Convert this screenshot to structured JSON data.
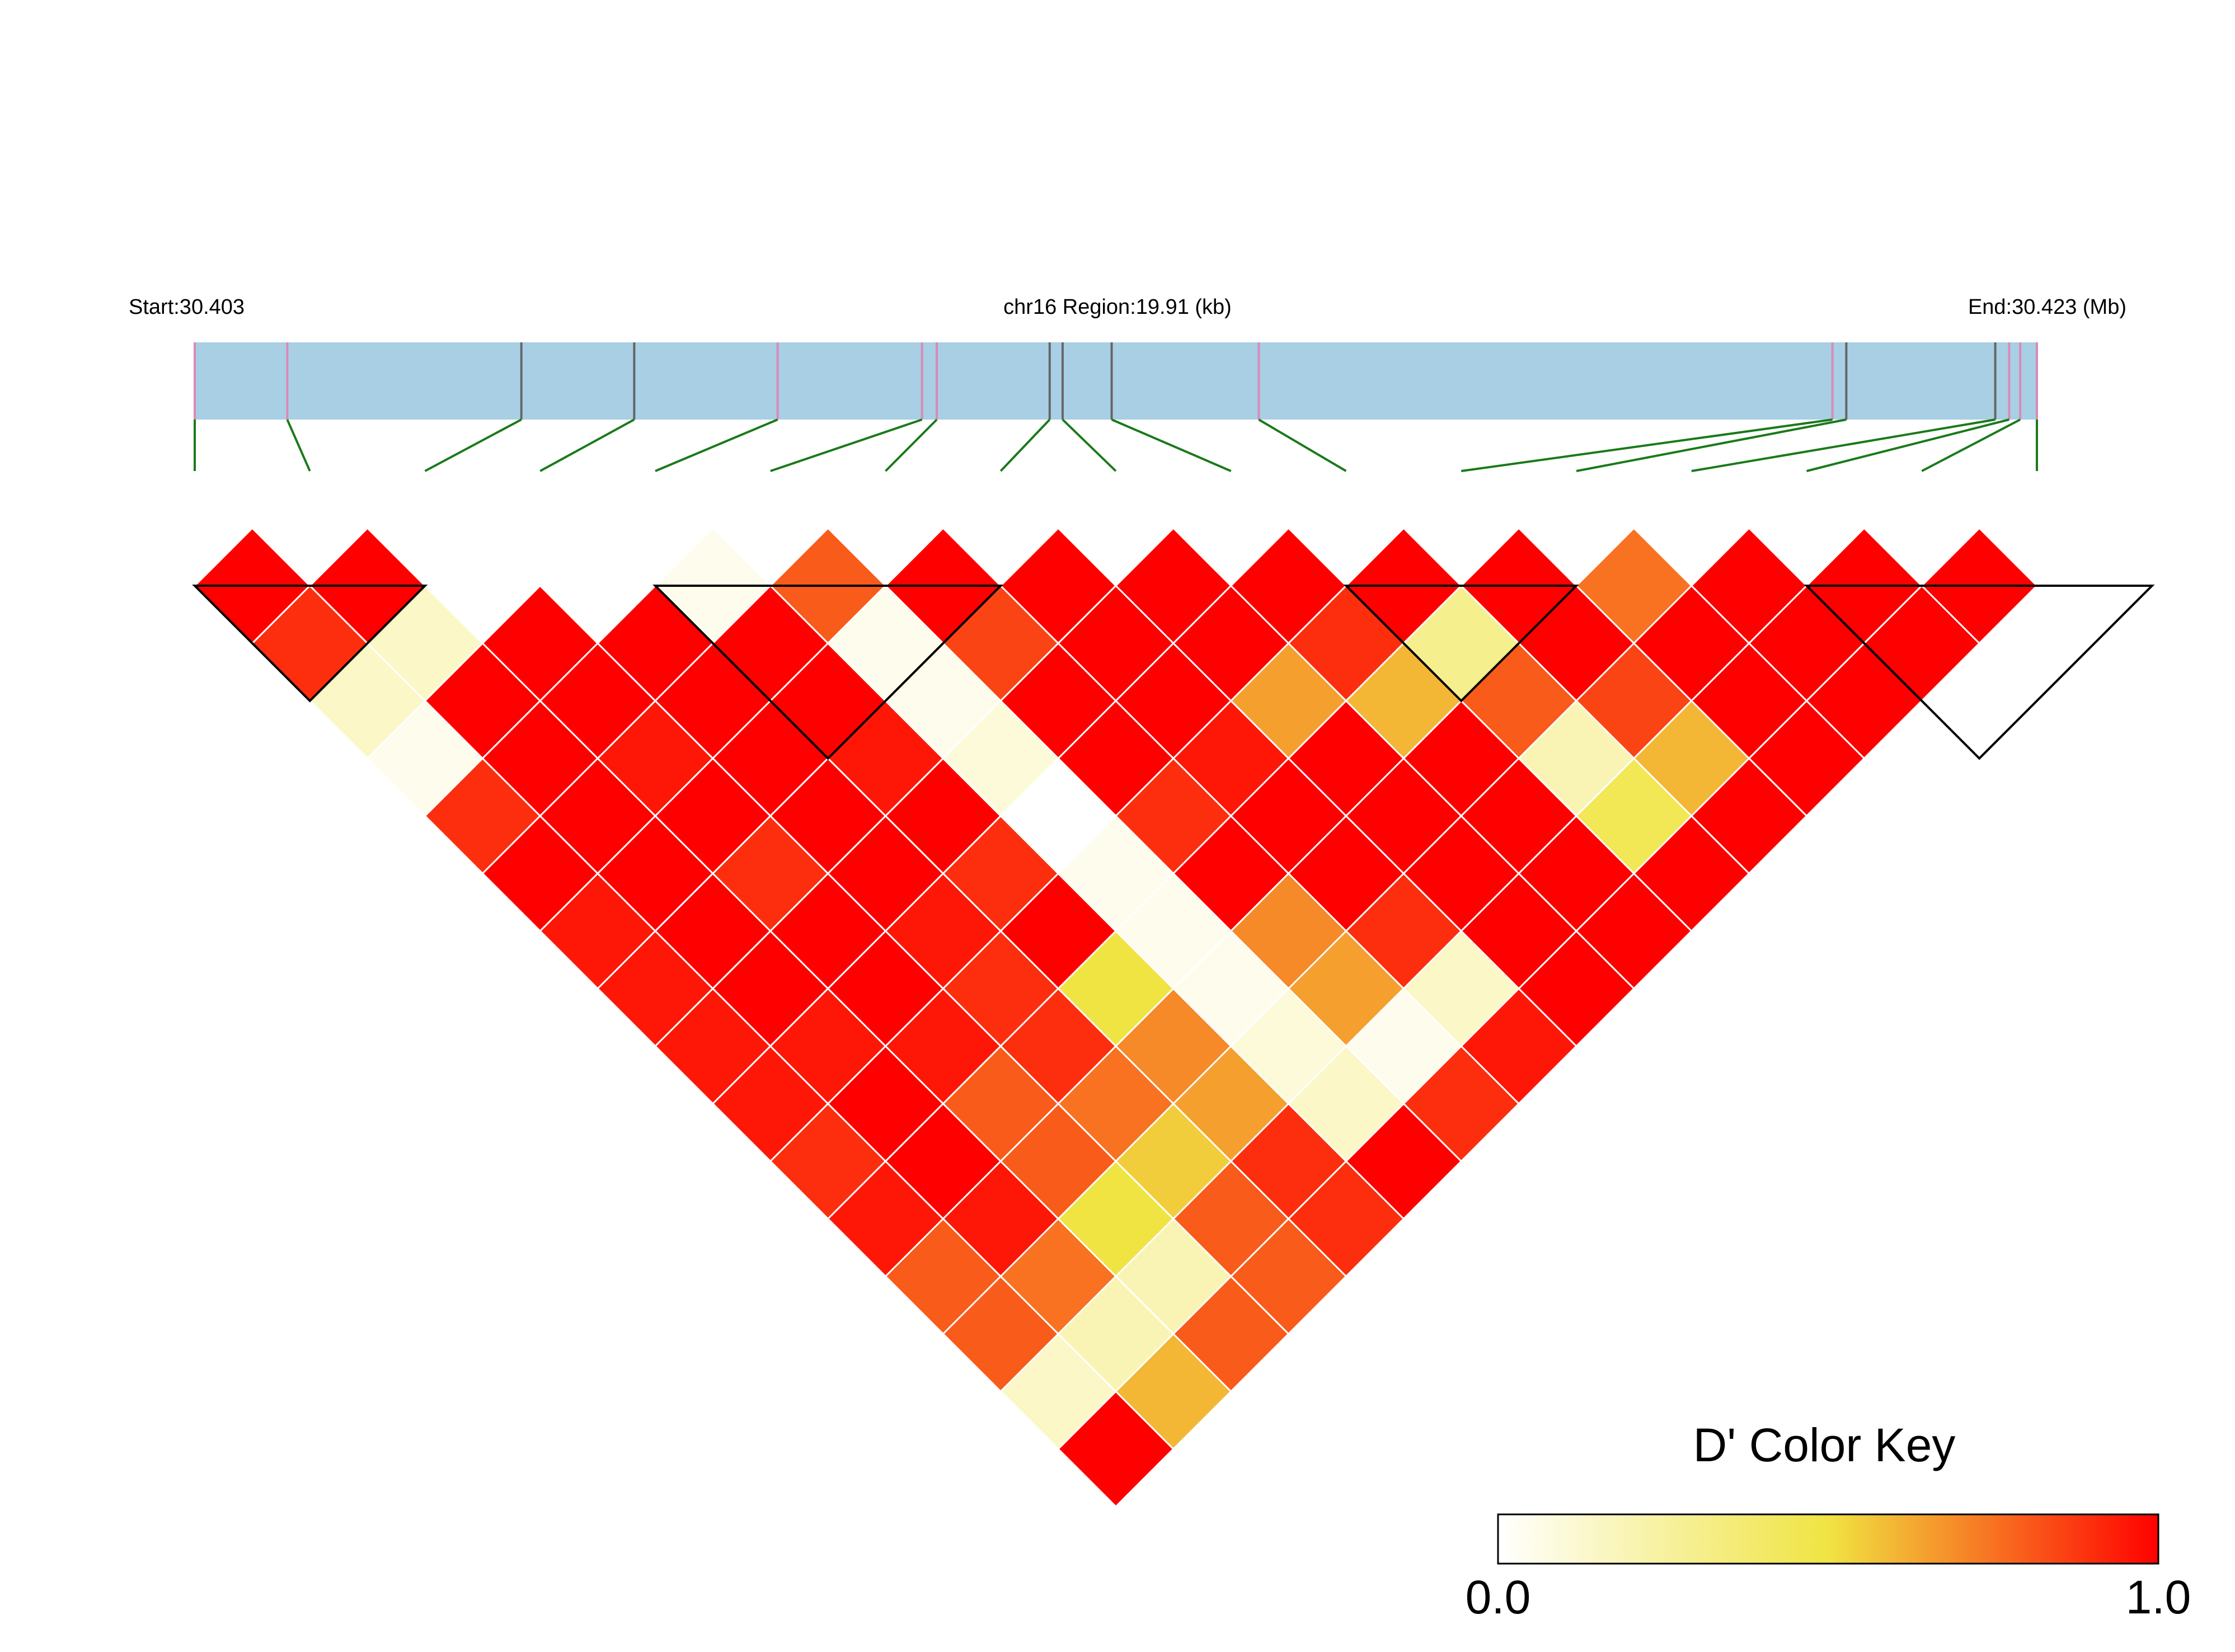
{
  "chart_data": {
    "type": "heatmap",
    "subtype": "ld-triangle",
    "chromosome": "chr16",
    "header": {
      "start_label": "Start:30.403",
      "region_label": "chr16 Region:19.91 (kb)",
      "end_label": "End:30.423 (Mb)"
    },
    "snp_positions_kb": [
      0.0,
      1.0,
      3.53,
      4.75,
      6.3,
      7.86,
      8.02,
      9.24,
      9.38,
      9.91,
      11.5,
      17.7,
      17.85,
      19.46,
      19.61,
      19.73,
      19.91
    ],
    "snp_marker_types": [
      "pink",
      "pink",
      "gray",
      "gray",
      "pink",
      "pink",
      "pink",
      "gray",
      "gray",
      "gray",
      "pink",
      "pink",
      "gray",
      "gray",
      "pink",
      "pink",
      "pink"
    ],
    "dprime_matrix_rows": [
      [
        1.0,
        0.9,
        0.15,
        0.05,
        0.9,
        1.0,
        0.95,
        0.95,
        0.95,
        0.95,
        0.9,
        0.95,
        0.8,
        0.8,
        0.15,
        1.0
      ],
      [
        1.0,
        0.15,
        1.0,
        1.0,
        1.0,
        1.0,
        1.0,
        1.0,
        0.95,
        1.0,
        1.0,
        0.95,
        0.75,
        0.2,
        0.6
      ],
      [
        0.0,
        1.0,
        1.0,
        0.95,
        1.0,
        0.9,
        1.0,
        1.0,
        0.95,
        0.8,
        0.8,
        0.5,
        0.2,
        0.8
      ],
      [
        0.0,
        1.0,
        1.0,
        1.0,
        1.0,
        1.0,
        0.95,
        0.9,
        0.9,
        0.75,
        0.55,
        0.8,
        0.8
      ],
      [
        0.05,
        1.0,
        1.0,
        0.95,
        1.0,
        0.9,
        1.0,
        0.5,
        0.7,
        0.65,
        0.9,
        0.9
      ],
      [
        0.8,
        0.05,
        0.05,
        0.1,
        0.0,
        0.05,
        0.05,
        0.05,
        0.1,
        0.15,
        1.0
      ],
      [
        1.0,
        0.85,
        1.0,
        1.0,
        0.9,
        1.0,
        0.7,
        0.65,
        0.05,
        0.9
      ],
      [
        1.0,
        1.0,
        1.0,
        0.95,
        1.0,
        1.0,
        0.9,
        0.15,
        0.95
      ],
      [
        1.0,
        1.0,
        0.65,
        1.0,
        1.0,
        1.0,
        1.0,
        1.0
      ],
      [
        1.0,
        0.9,
        0.6,
        1.0,
        1.0,
        1.0,
        1.0
      ],
      [
        1.0,
        0.3,
        0.8,
        0.2,
        0.45,
        1.0
      ],
      [
        1.0,
        1.0,
        0.85,
        0.6,
        1.0
      ],
      [
        0.75,
        1.0,
        1.0,
        1.0
      ],
      [
        1.0,
        1.0,
        1.0
      ],
      [
        1.0,
        1.0
      ],
      [
        1.0
      ]
    ],
    "ld_blocks": [
      [
        0,
        2
      ],
      [
        4,
        7
      ],
      [
        10,
        12
      ],
      [
        14,
        17
      ]
    ],
    "color_key": {
      "title": "D' Color Key",
      "min_label": "0.0",
      "max_label": "1.0",
      "colors": [
        "#ffffff",
        "#f0e442",
        "#ff0000"
      ]
    },
    "colors": {
      "region_bar": "#a8cfe3",
      "marker_pink": "#d98ab8",
      "marker_gray": "#666666",
      "connector": "#1a7a1a",
      "cell_border": "#ffffff",
      "block_outline": "#000000"
    }
  }
}
